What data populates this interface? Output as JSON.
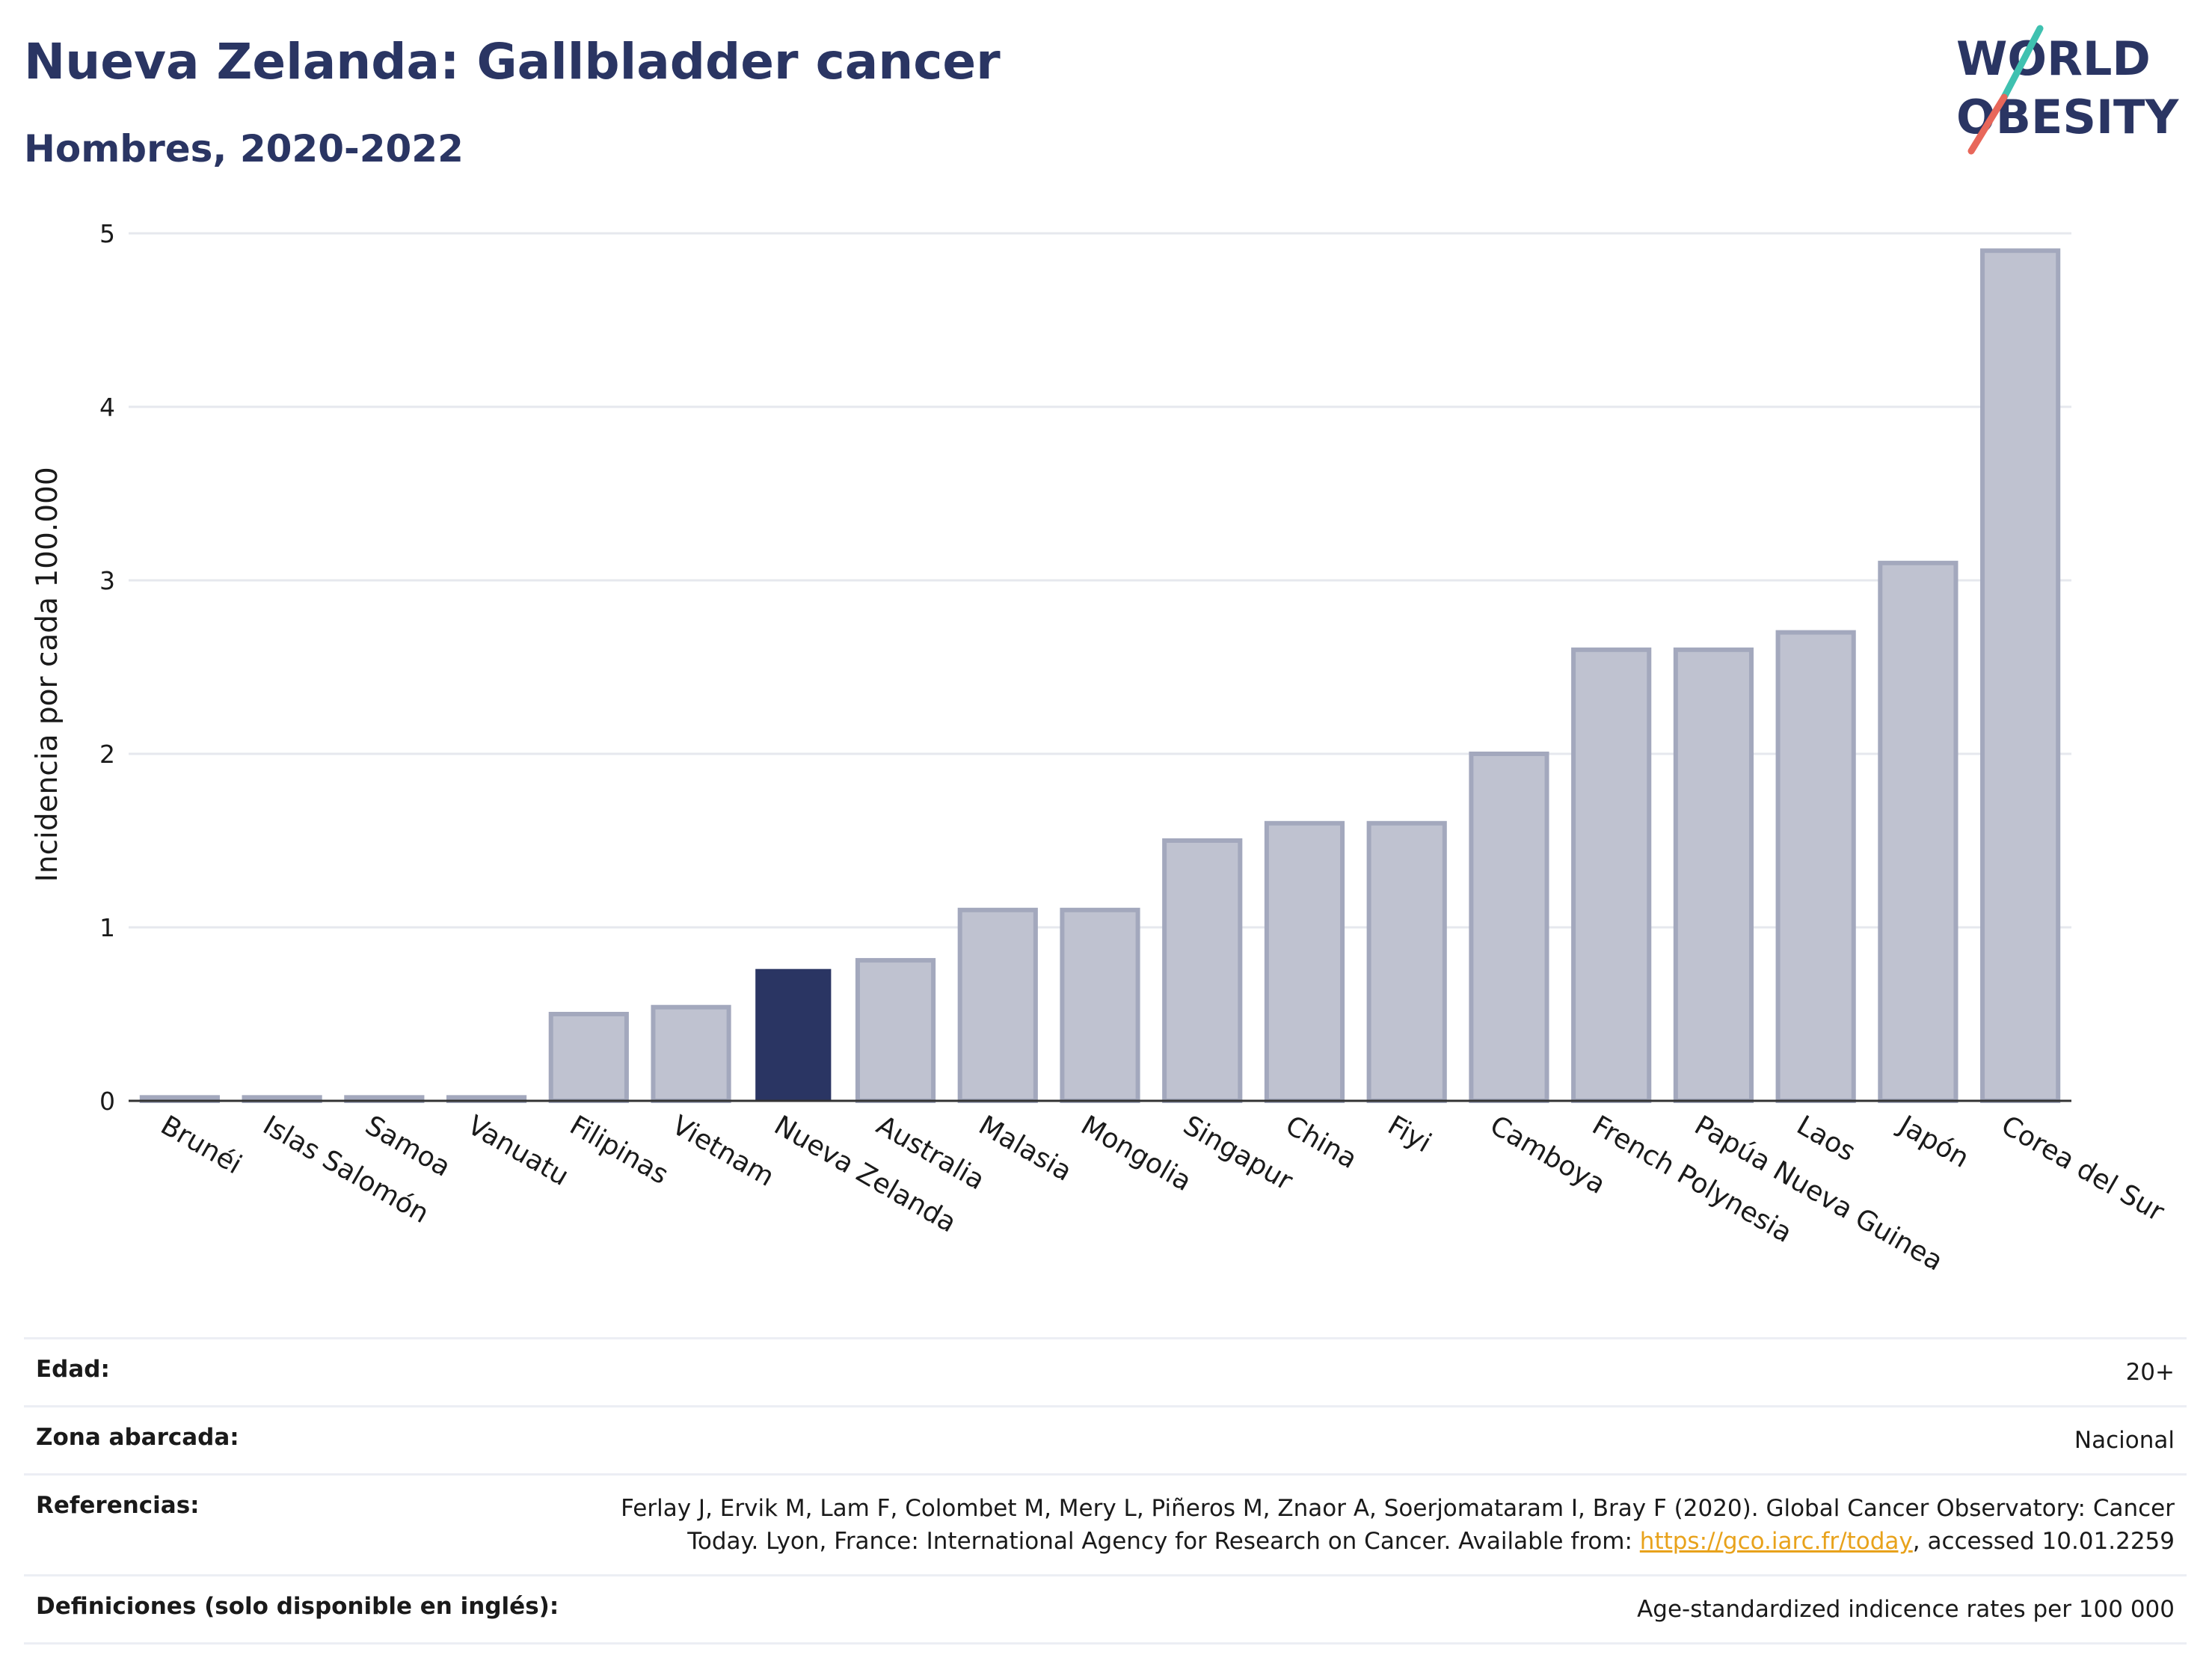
{
  "header": {
    "title": "Nueva Zelanda: Gallbladder cancer",
    "subtitle": "Hombres, 2020-2022"
  },
  "logo": {
    "line1": "WORLD",
    "line2": "OBESITY",
    "colors": {
      "text": "#2a3563",
      "slash_top": "#3fc1b0",
      "slash_bottom": "#e8675a"
    }
  },
  "chart_data": {
    "type": "bar",
    "ylabel": "Incidencia por cada 100.000",
    "xlabel": "",
    "ylim": [
      0,
      5
    ],
    "yticks": [
      0,
      1,
      2,
      3,
      4,
      5
    ],
    "grid": true,
    "categories": [
      "Brunéi",
      "Islas Salomón",
      "Samoa",
      "Vanuatu",
      "Filipinas",
      "Vietnam",
      "Nueva Zelanda",
      "Australia",
      "Malasia",
      "Mongolia",
      "Singapur",
      "China",
      "Fiyi",
      "Camboya",
      "French Polynesia",
      "Papúa Nueva Guinea",
      "Laos",
      "Japón",
      "Corea del Sur"
    ],
    "values": [
      0.02,
      0.02,
      0.02,
      0.02,
      0.5,
      0.54,
      0.76,
      0.81,
      1.1,
      1.1,
      1.5,
      1.6,
      1.6,
      2.0,
      2.6,
      2.6,
      2.7,
      3.1,
      4.9
    ],
    "highlight": "Nueva Zelanda",
    "colors": {
      "bar": "#bfc2d0",
      "bar_border": "#a3a8bd",
      "highlight": "#2a3563",
      "grid": "#e6e8ee",
      "axis": "#333333"
    }
  },
  "meta": {
    "rows": [
      {
        "label": "Edad:",
        "value": "20+"
      },
      {
        "label": "Zona abarcada:",
        "value": "Nacional"
      },
      {
        "label": "Referencias:",
        "value_line1": "Ferlay J, Ervik M, Lam F, Colombet M, Mery L, Piñeros M, Znaor A, Soerjomataram I, Bray F (2020). Global Cancer Observatory: Cancer",
        "value_line2_pre": "Today. Lyon, France: International Agency for Research on Cancer. Available from: ",
        "value_link": "https://gco.iarc.fr/today",
        "value_line2_post": ", accessed 10.01.2259"
      },
      {
        "label": "Definiciones (solo disponible en inglés):",
        "value": "Age-standardized indicence rates per 100 000"
      }
    ]
  }
}
